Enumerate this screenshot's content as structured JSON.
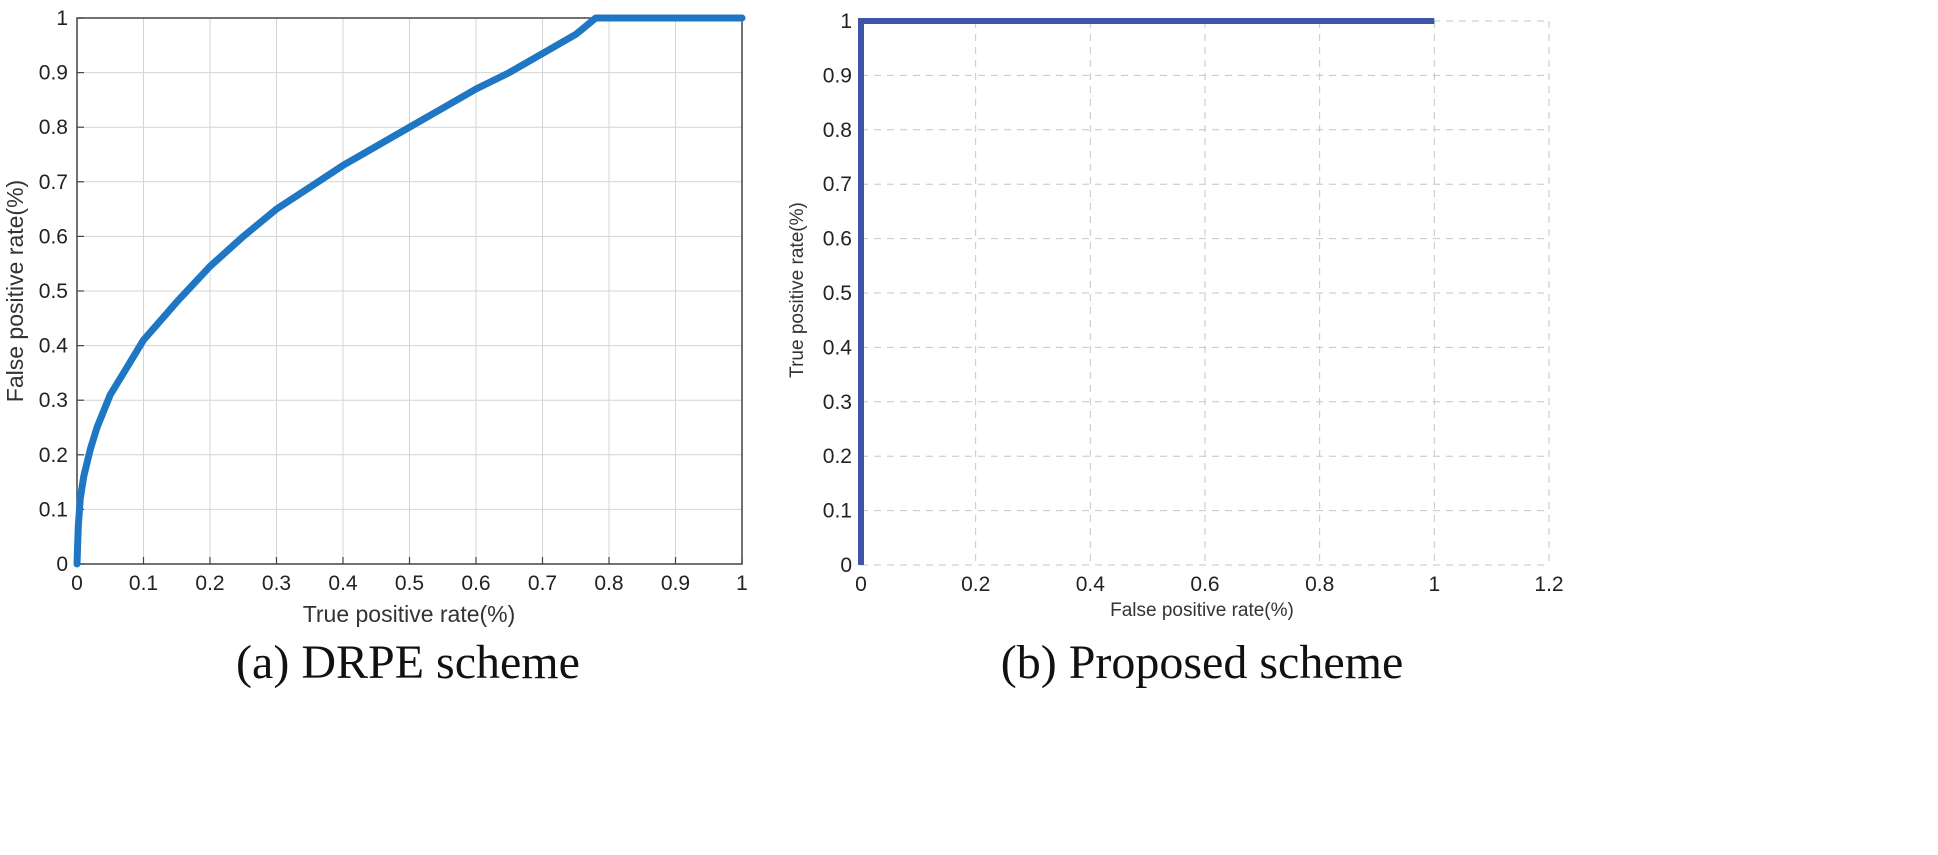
{
  "figure": {
    "captions": [
      "(a) DRPE scheme",
      "(b)  Proposed  scheme"
    ]
  },
  "chart_data": [
    {
      "type": "line",
      "xlabel": "True positive rate(%)",
      "ylabel": "False positive rate(%)",
      "xlim": [
        0,
        1
      ],
      "ylim": [
        0,
        1
      ],
      "xticks": [
        "0",
        "0.1",
        "0.2",
        "0.3",
        "0.4",
        "0.5",
        "0.6",
        "0.7",
        "0.8",
        "0.9",
        "1"
      ],
      "yticks": [
        "0",
        "0.1",
        "0.2",
        "0.3",
        "0.4",
        "0.5",
        "0.6",
        "0.7",
        "0.8",
        "0.9",
        "1"
      ],
      "grid": "solid",
      "line_color": "#1f77c4",
      "series": [
        {
          "x": [
            0,
            0.002,
            0.005,
            0.01,
            0.02,
            0.03,
            0.05,
            0.07,
            0.1,
            0.15,
            0.2,
            0.25,
            0.3,
            0.35,
            0.4,
            0.45,
            0.5,
            0.55,
            0.6,
            0.65,
            0.7,
            0.75,
            0.78,
            1.0
          ],
          "y": [
            0,
            0.07,
            0.12,
            0.16,
            0.21,
            0.25,
            0.31,
            0.35,
            0.41,
            0.48,
            0.545,
            0.6,
            0.65,
            0.69,
            0.73,
            0.765,
            0.8,
            0.835,
            0.87,
            0.9,
            0.935,
            0.97,
            1.0,
            1.0
          ]
        }
      ]
    },
    {
      "type": "line",
      "xlabel": "False positive rate(%)",
      "ylabel": "True positive rate(%)",
      "xlim": [
        0,
        1.2
      ],
      "ylim": [
        0,
        1
      ],
      "xticks": [
        "0",
        "0.2",
        "0.4",
        "0.6",
        "0.8",
        "1",
        "1.2"
      ],
      "yticks": [
        "0",
        "0.1",
        "0.2",
        "0.3",
        "0.4",
        "0.5",
        "0.6",
        "0.7",
        "0.8",
        "0.9",
        "1"
      ],
      "grid": "dashed",
      "line_color": "#3f55a8",
      "series": [
        {
          "x": [
            0,
            0,
            1
          ],
          "y": [
            0,
            1,
            1
          ]
        }
      ]
    }
  ]
}
